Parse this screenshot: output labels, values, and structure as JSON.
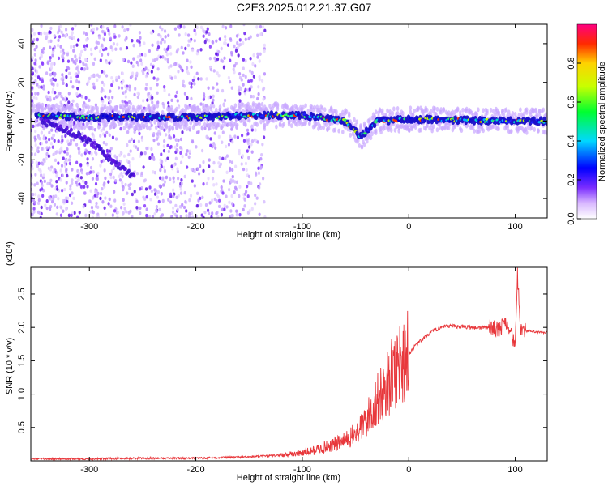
{
  "title": "C2E3.2025.012.21.37.G07",
  "chart_data": [
    {
      "type": "heatmap",
      "xlabel": "Height of straight line (km)",
      "ylabel": "Frequency (Hz)",
      "xlim": [
        -355,
        130
      ],
      "ylim": [
        -50,
        50
      ],
      "xticks": [
        -300,
        -200,
        -100,
        0,
        100
      ],
      "yticks": [
        -40,
        -20,
        0,
        20,
        40
      ],
      "grid": false,
      "colorbar": {
        "label": "Normalized spectral amplitude",
        "range": [
          0,
          1
        ],
        "ticks": [
          "0.0",
          "0.2",
          "0.4",
          "0.6",
          "0.8"
        ]
      },
      "features": [
        {
          "name": "",
          "x": [
            -345,
            -300,
            -200,
            -150,
            -100,
            -60,
            -45,
            -30,
            0,
            100,
            130
          ],
          "y": [
            3,
            2,
            2,
            3,
            3,
            0,
            -8,
            0,
            1,
            0,
            0
          ]
        },
        {
          "name": "",
          "x": [
            -345,
            -320,
            -300,
            -280,
            -260
          ],
          "y": [
            0,
            -5,
            -10,
            -20,
            -28
          ]
        }
      ]
    },
    {
      "type": "line",
      "xlabel": "Height of straight line (km)",
      "ylabel": "SNR (10 * v/v)",
      "y_multiplier": "(x10⁴)",
      "xlim": [
        -355,
        130
      ],
      "ylim": [
        0,
        2.9
      ],
      "xticks": [
        -300,
        -200,
        -100,
        0,
        100
      ],
      "yticks": [
        "0.5",
        "1.0",
        "1.5",
        "2.0",
        "2.5"
      ],
      "grid": false,
      "color": "#e8383c",
      "series": [
        {
          "name": "",
          "x": [
            -355,
            -300,
            -250,
            -200,
            -175,
            -150,
            -125,
            -110,
            -100,
            -90,
            -80,
            -70,
            -60,
            -50,
            -45,
            -40,
            -35,
            -30,
            -25,
            -20,
            -15,
            -10,
            -5,
            0,
            5,
            10,
            15,
            20,
            30,
            40,
            50,
            60,
            70,
            80,
            85,
            90,
            95,
            100,
            102,
            105,
            110,
            120,
            130
          ],
          "y": [
            0.03,
            0.03,
            0.04,
            0.04,
            0.05,
            0.06,
            0.08,
            0.1,
            0.12,
            0.15,
            0.2,
            0.25,
            0.3,
            0.4,
            0.5,
            0.6,
            0.75,
            0.9,
            1.0,
            1.15,
            1.3,
            1.45,
            1.55,
            1.6,
            1.7,
            1.78,
            1.85,
            1.92,
            2.0,
            2.02,
            2.01,
            2.0,
            2.0,
            2.0,
            1.95,
            2.1,
            2.0,
            1.7,
            2.8,
            2.0,
            1.95,
            1.93,
            1.92
          ]
        }
      ]
    }
  ]
}
